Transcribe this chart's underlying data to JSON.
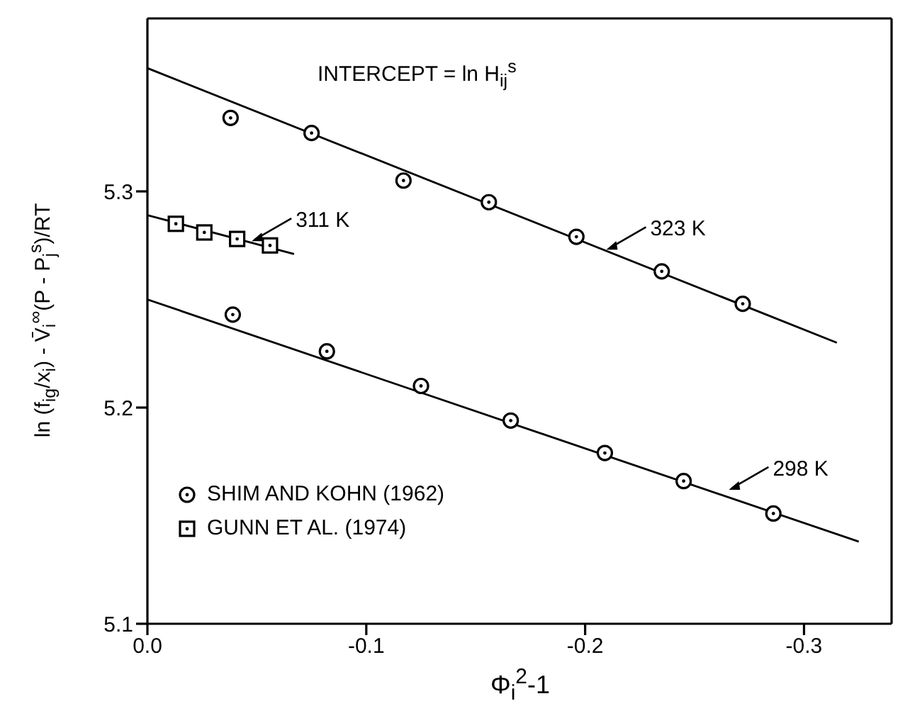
{
  "chart_data": {
    "type": "scatter",
    "xlabel": "Φ$_{i}$$^{2}$-1",
    "ylabel": "ln (f$_{ig}$/x$_{i}$) - V̄$_{i}$$^{∞}$(P - P$_{j}$$^{s}$)/RT",
    "annotations": [
      "INTERCEPT = ln H$_{ij}$$^{s}$",
      {
        "text": "323 K",
        "x": -0.209,
        "y": 5.273
      },
      {
        "text": "311 K",
        "x": -0.047,
        "y": 5.277
      },
      {
        "text": "298 K",
        "x": -0.265,
        "y": 5.162
      }
    ],
    "series": [
      {
        "name": "SHIM AND KOHN (1962)",
        "marker": "circle",
        "color": "#000000",
        "x": [
          -0.038,
          -0.075,
          -0.117,
          -0.156,
          -0.196,
          -0.235,
          -0.272,
          -0.039,
          -0.082,
          -0.125,
          -0.166,
          -0.209,
          -0.245,
          -0.286
        ],
        "values": [
          5.334,
          5.327,
          5.305,
          5.295,
          5.279,
          5.263,
          5.248,
          5.243,
          5.226,
          5.21,
          5.194,
          5.179,
          5.166,
          5.151
        ]
      },
      {
        "name": "GUNN ET AL. (1974)",
        "marker": "square",
        "color": "#000000",
        "x": [
          -0.013,
          -0.026,
          -0.041,
          -0.056
        ],
        "values": [
          5.285,
          5.281,
          5.278,
          5.275
        ]
      },
      {
        "type": "line",
        "marker": "none",
        "color": "#000000",
        "x": [
          0,
          -0.315
        ],
        "values": [
          5.357,
          5.23
        ]
      },
      {
        "type": "line",
        "marker": "none",
        "color": "#000000",
        "x": [
          0,
          -0.067
        ],
        "values": [
          5.289,
          5.271
        ]
      },
      {
        "type": "line",
        "marker": "none",
        "color": "#000000",
        "x": [
          0,
          -0.325
        ],
        "values": [
          5.25,
          5.138
        ]
      }
    ],
    "xlim": [
      0,
      -0.34
    ],
    "xticks": [
      {
        "value": 0,
        "label": "0.0"
      },
      -0.1,
      -0.2,
      -0.3
    ],
    "ylim": [
      5.1,
      5.38
    ],
    "yticks": [
      5.1,
      5.2,
      5.3
    ],
    "grid": false,
    "legend": "bottom left"
  }
}
